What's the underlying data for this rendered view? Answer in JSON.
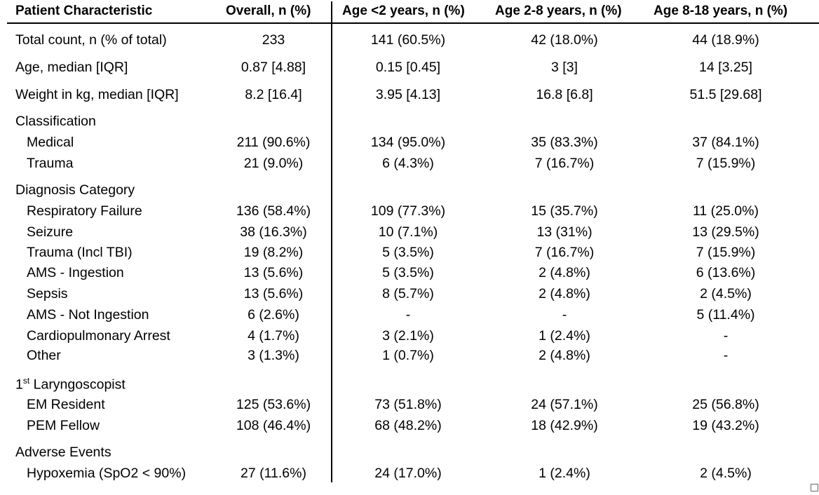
{
  "headers": {
    "characteristic": "Patient Characteristic",
    "overall": "Overall, n (%)",
    "age_lt2": "Age <2 years, n (%)",
    "age_2_8": "Age 2-8 years, n (%)",
    "age_8_18": "Age 8-18 years, n (%)"
  },
  "rows": [
    {
      "label": "Total count, n (% of total)",
      "cells": [
        "233",
        "141 (60.5%)",
        "42 (18.0%)",
        "44 (18.9%)"
      ]
    },
    {
      "label": "Age, median [IQR]",
      "cells": [
        "0.87 [4.88]",
        "0.15 [0.45]",
        "3 [3]",
        "14 [3.25]"
      ]
    },
    {
      "label": "Weight in kg, median [IQR]",
      "cells": [
        "8.2 [16.4]",
        "3.95 [4.13]",
        "16.8 [6.8]",
        "51.5 [29.68]"
      ]
    },
    {
      "label": "Classification",
      "cells": [
        "",
        "",
        "",
        ""
      ]
    },
    {
      "label": "Medical",
      "cells": [
        "211 (90.6%)",
        "134 (95.0%)",
        "35 (83.3%)",
        "37 (84.1%)"
      ]
    },
    {
      "label": "Trauma",
      "cells": [
        "21 (9.0%)",
        "6 (4.3%)",
        "7 (16.7%)",
        "7 (15.9%)"
      ]
    },
    {
      "label": "Diagnosis Category",
      "cells": [
        "",
        "",
        "",
        ""
      ]
    },
    {
      "label": "Respiratory Failure",
      "cells": [
        "136 (58.4%)",
        "109 (77.3%)",
        "15 (35.7%)",
        "11 (25.0%)"
      ]
    },
    {
      "label": "Seizure",
      "cells": [
        "38 (16.3%)",
        "10 (7.1%)",
        "13 (31%)",
        "13 (29.5%)"
      ]
    },
    {
      "label": "Trauma (Incl TBI)",
      "cells": [
        "19 (8.2%)",
        "5 (3.5%)",
        "7 (16.7%)",
        "7 (15.9%)"
      ]
    },
    {
      "label": "AMS - Ingestion",
      "cells": [
        "13 (5.6%)",
        "5 (3.5%)",
        "2 (4.8%)",
        "6 (13.6%)"
      ]
    },
    {
      "label": "Sepsis",
      "cells": [
        "13 (5.6%)",
        "8 (5.7%)",
        "2 (4.8%)",
        "2 (4.5%)"
      ]
    },
    {
      "label": "AMS - Not Ingestion",
      "cells": [
        "6 (2.6%)",
        "-",
        "-",
        "5 (11.4%)"
      ]
    },
    {
      "label": "Cardiopulmonary Arrest",
      "cells": [
        "4 (1.7%)",
        "3 (2.1%)",
        "1 (2.4%)",
        "-"
      ]
    },
    {
      "label": "Other",
      "cells": [
        "3 (1.3%)",
        "1 (0.7%)",
        "2 (4.8%)",
        "-"
      ]
    },
    {
      "label": "Laryngoscopist",
      "label_prefix": "1",
      "label_sup": "st",
      "cells": [
        "",
        "",
        "",
        ""
      ]
    },
    {
      "label": "EM Resident",
      "cells": [
        "125 (53.6%)",
        "73 (51.8%)",
        "24 (57.1%)",
        "25 (56.8%)"
      ]
    },
    {
      "label": "PEM Fellow",
      "cells": [
        "108 (46.4%)",
        "68 (48.2%)",
        "18 (42.9%)",
        "19 (43.2%)"
      ]
    },
    {
      "label": "Adverse Events",
      "cells": [
        "",
        "",
        "",
        ""
      ]
    },
    {
      "label": "Hypoxemia (SpO2 < 90%)",
      "cells": [
        "27 (11.6%)",
        "24 (17.0%)",
        "1 (2.4%)",
        "2 (4.5%)"
      ]
    }
  ]
}
